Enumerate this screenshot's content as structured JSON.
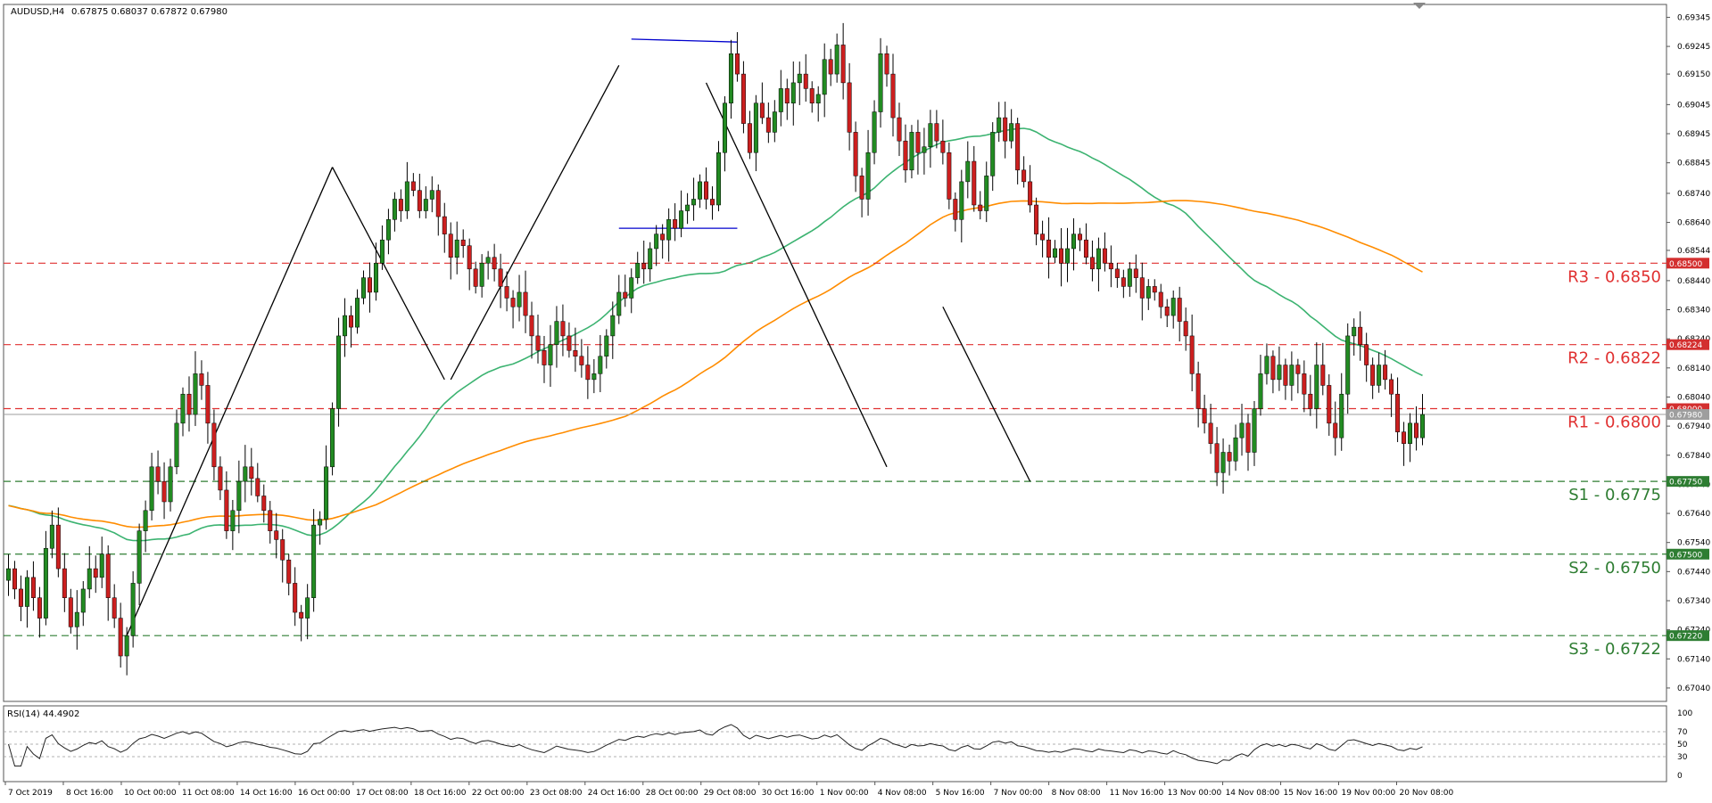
{
  "header": {
    "symbol": "AUDUSD,H4",
    "ohlc": "0.67875 0.68037 0.67872 0.67980"
  },
  "indicator": {
    "label": "RSI(14) 44.4902",
    "levels": [
      "100",
      "70",
      "50",
      "30",
      "0"
    ]
  },
  "colors": {
    "bull": "#228b22",
    "bear": "#cc1f1f",
    "resistance": "#e03030",
    "support": "#2e7d32",
    "ma_fast": "#3cb371",
    "ma_slow": "#ff8c00",
    "trend": "#000000",
    "box": "#0000cd"
  },
  "chart_data": {
    "type": "candlestick",
    "price_axis": [
      "0.69345",
      "0.69245",
      "0.69150",
      "0.69045",
      "0.68945",
      "0.68845",
      "0.68740",
      "0.68640",
      "0.68544",
      "0.68440",
      "0.68340",
      "0.68240",
      "0.68140",
      "0.68040",
      "0.67940",
      "0.67840",
      "0.67740",
      "0.67640",
      "0.67540",
      "0.67440",
      "0.67340",
      "0.67240",
      "0.67140",
      "0.67040"
    ],
    "price_range": [
      0.67,
      0.6938
    ],
    "current_price": "0.67980",
    "time_axis": [
      "7 Oct 2019",
      "8 Oct 16:00",
      "10 Oct 00:00",
      "11 Oct 08:00",
      "14 Oct 16:00",
      "16 Oct 00:00",
      "17 Oct 08:00",
      "18 Oct 16:00",
      "22 Oct 00:00",
      "23 Oct 08:00",
      "24 Oct 16:00",
      "28 Oct 00:00",
      "29 Oct 08:00",
      "30 Oct 16:00",
      "1 Nov 00:00",
      "4 Nov 08:00",
      "5 Nov 16:00",
      "7 Nov 00:00",
      "8 Nov 08:00",
      "11 Nov 16:00",
      "13 Nov 00:00",
      "14 Nov 08:00",
      "15 Nov 16:00",
      "19 Nov 00:00",
      "20 Nov 08:00"
    ],
    "levels": [
      {
        "name": "R3 - 0.6850",
        "value": 0.685,
        "tag": "0.68500",
        "kind": "resistance"
      },
      {
        "name": "R2 - 0.6822",
        "value": 0.6822,
        "tag": "0.68224",
        "kind": "resistance"
      },
      {
        "name": "R1 - 0.6800",
        "value": 0.68,
        "tag": "0.68000",
        "kind": "resistance"
      },
      {
        "name": "S1 - 0.6775",
        "value": 0.6775,
        "tag": "0.67750",
        "kind": "support"
      },
      {
        "name": "S2 - 0.6750",
        "value": 0.675,
        "tag": "0.67500",
        "kind": "support"
      },
      {
        "name": "S3 - 0.6722",
        "value": 0.6722,
        "tag": "0.67220",
        "kind": "support"
      }
    ],
    "closes": [
      0.6745,
      0.6738,
      0.6732,
      0.6742,
      0.6735,
      0.6728,
      0.6752,
      0.676,
      0.6745,
      0.6735,
      0.6725,
      0.673,
      0.6738,
      0.6745,
      0.6742,
      0.675,
      0.6735,
      0.6728,
      0.6715,
      0.6722,
      0.674,
      0.6758,
      0.6765,
      0.678,
      0.6775,
      0.6768,
      0.678,
      0.6795,
      0.6805,
      0.6798,
      0.6812,
      0.6808,
      0.6795,
      0.678,
      0.6772,
      0.6758,
      0.6765,
      0.6775,
      0.678,
      0.6776,
      0.677,
      0.6765,
      0.6758,
      0.6755,
      0.6748,
      0.674,
      0.673,
      0.6728,
      0.6735,
      0.676,
      0.6762,
      0.678,
      0.68,
      0.6825,
      0.6832,
      0.6828,
      0.6838,
      0.6845,
      0.684,
      0.685,
      0.6858,
      0.6865,
      0.6872,
      0.6868,
      0.6878,
      0.6875,
      0.6868,
      0.6872,
      0.6875,
      0.6866,
      0.686,
      0.6852,
      0.6858,
      0.6856,
      0.6848,
      0.6842,
      0.685,
      0.6852,
      0.6848,
      0.6842,
      0.6838,
      0.6835,
      0.684,
      0.6832,
      0.6825,
      0.682,
      0.6815,
      0.6822,
      0.683,
      0.6825,
      0.682,
      0.6818,
      0.6815,
      0.681,
      0.6812,
      0.6818,
      0.6825,
      0.6832,
      0.684,
      0.6838,
      0.6845,
      0.685,
      0.6848,
      0.6855,
      0.686,
      0.6858,
      0.6865,
      0.6862,
      0.6868,
      0.687,
      0.6872,
      0.6878,
      0.6872,
      0.687,
      0.6888,
      0.6905,
      0.6922,
      0.6915,
      0.6898,
      0.6888,
      0.6905,
      0.69,
      0.6895,
      0.6902,
      0.691,
      0.6905,
      0.6912,
      0.6915,
      0.691,
      0.6905,
      0.6908,
      0.692,
      0.6915,
      0.6925,
      0.6912,
      0.6895,
      0.688,
      0.6872,
      0.6888,
      0.6902,
      0.6922,
      0.6915,
      0.69,
      0.6892,
      0.6882,
      0.6895,
      0.6888,
      0.689,
      0.6898,
      0.6892,
      0.6888,
      0.6872,
      0.6865,
      0.6878,
      0.6885,
      0.687,
      0.6868,
      0.688,
      0.6895,
      0.69,
      0.6892,
      0.6898,
      0.6882,
      0.6878,
      0.687,
      0.686,
      0.6858,
      0.6852,
      0.6855,
      0.685,
      0.6855,
      0.686,
      0.6858,
      0.6852,
      0.6848,
      0.6855,
      0.685,
      0.6848,
      0.6845,
      0.6842,
      0.6848,
      0.6845,
      0.6838,
      0.6842,
      0.684,
      0.6835,
      0.6832,
      0.6838,
      0.683,
      0.6825,
      0.6812,
      0.68,
      0.6795,
      0.6788,
      0.6778,
      0.6785,
      0.6782,
      0.679,
      0.6795,
      0.6785,
      0.68,
      0.6812,
      0.6818,
      0.681,
      0.6815,
      0.6808,
      0.6815,
      0.6812,
      0.6805,
      0.68,
      0.6815,
      0.6808,
      0.6795,
      0.679,
      0.6805,
      0.6825,
      0.6828,
      0.6822,
      0.6815,
      0.6808,
      0.6815,
      0.681,
      0.6805,
      0.6792,
      0.6788,
      0.6795,
      0.679,
      0.6798
    ]
  }
}
